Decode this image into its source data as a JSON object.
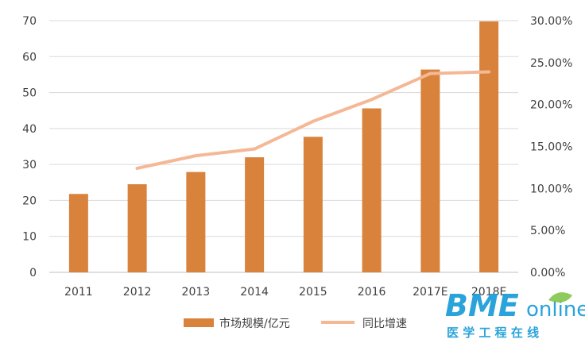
{
  "chart_data": {
    "type": "bar",
    "categories": [
      "2011",
      "2012",
      "2013",
      "2014",
      "2015",
      "2016",
      "2017E",
      "2018E"
    ],
    "series": [
      {
        "name": "市场规模/亿元",
        "type": "bar",
        "axis": "left",
        "color": "#D9823B",
        "values": [
          21.8,
          24.5,
          27.9,
          32.0,
          37.7,
          45.6,
          56.4,
          69.8
        ]
      },
      {
        "name": "同比增速",
        "type": "line",
        "axis": "right",
        "color": "#F4B896",
        "values": [
          null,
          0.124,
          0.139,
          0.147,
          0.18,
          0.206,
          0.237,
          0.239
        ]
      }
    ],
    "y_left": {
      "min": 0,
      "max": 70,
      "ticks": [
        "0",
        "10",
        "20",
        "30",
        "40",
        "50",
        "60",
        "70"
      ]
    },
    "y_right": {
      "min": 0,
      "max": 0.3,
      "ticks": [
        "0.00%",
        "5.00%",
        "10.00%",
        "15.00%",
        "20.00%",
        "25.00%",
        "30.00%"
      ]
    },
    "grid": true,
    "legend_position": "bottom"
  },
  "watermark": {
    "brand": "BME",
    "suffix": "online",
    "subtitle": "医 学 工 程 在 线",
    "colors": {
      "brand": "#1E9FD8",
      "suffix": "#1E9FD8",
      "subtitle": "#1E9FD8",
      "leaf": "#7CC142"
    }
  }
}
